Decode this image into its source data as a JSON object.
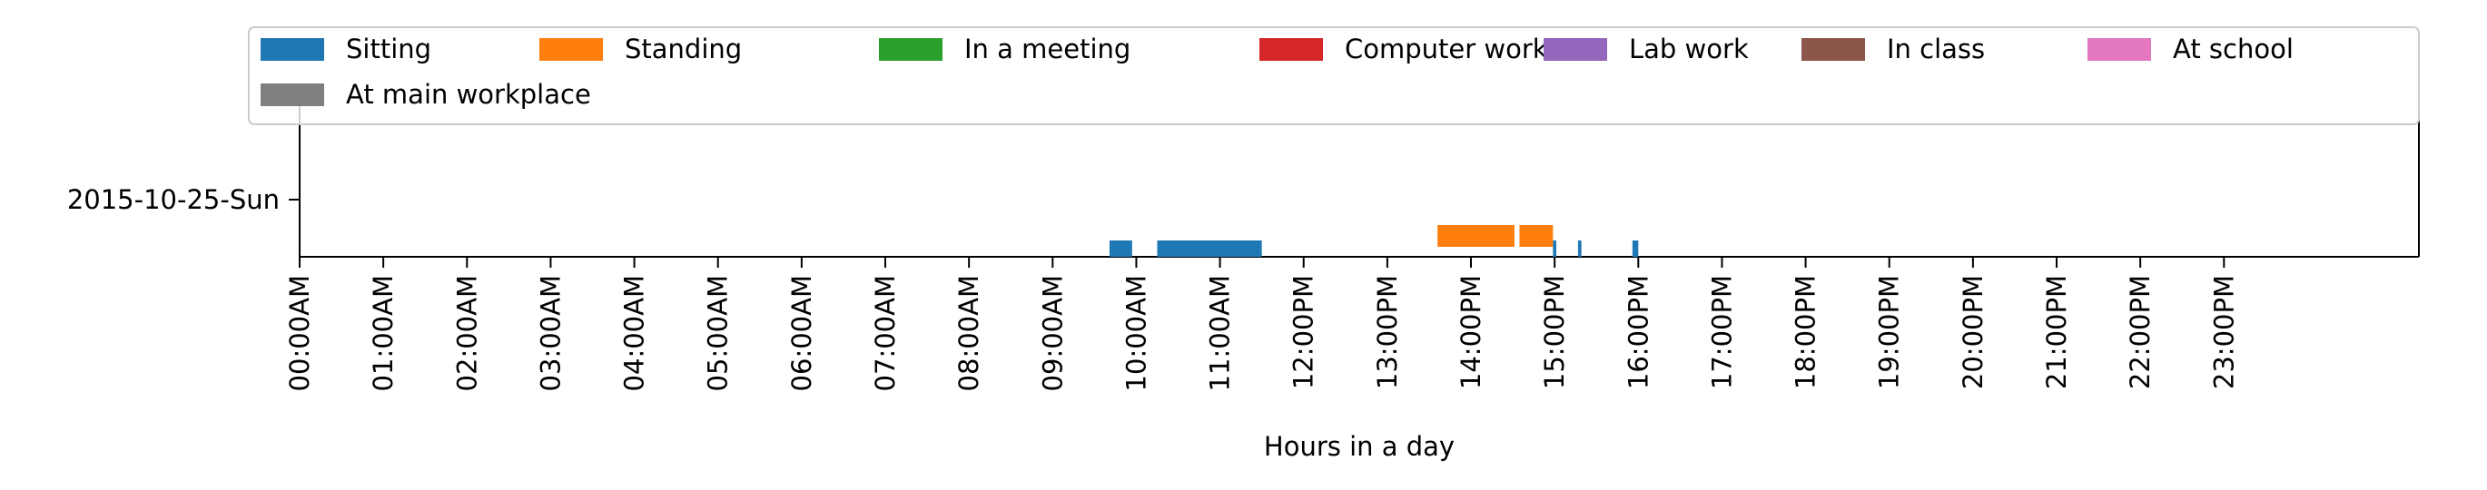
{
  "chart_data": {
    "type": "bar",
    "orientation": "horizontal-timeline",
    "title": "",
    "xlabel": "Hours in a day",
    "ylabel": "",
    "xlim": [
      0,
      24
    ],
    "grid": false,
    "legend_placement": "top",
    "categories": [
      "2015-10-25-Sun"
    ],
    "x_ticks": [
      "00:00AM",
      "01:00AM",
      "02:00AM",
      "03:00AM",
      "04:00AM",
      "05:00AM",
      "06:00AM",
      "07:00AM",
      "08:00AM",
      "09:00AM",
      "10:00AM",
      "11:00AM",
      "12:00PM",
      "13:00PM",
      "14:00PM",
      "15:00PM",
      "16:00PM",
      "17:00PM",
      "18:00PM",
      "19:00PM",
      "20:00PM",
      "21:00PM",
      "22:00PM",
      "23:00PM"
    ],
    "series": [
      {
        "name": "Sitting",
        "color": "#1f77b4",
        "intervals": [
          [
            9.68,
            9.95
          ],
          [
            10.25,
            11.5
          ],
          [
            14.98,
            15.02
          ],
          [
            15.28,
            15.32
          ],
          [
            15.93,
            16.0
          ]
        ]
      },
      {
        "name": "Standing",
        "color": "#ff7f0e",
        "intervals": [
          [
            13.6,
            14.52
          ],
          [
            14.58,
            14.98
          ]
        ]
      },
      {
        "name": "In a meeting",
        "color": "#2ca02c",
        "intervals": []
      },
      {
        "name": "Computer work",
        "color": "#d62728",
        "intervals": []
      },
      {
        "name": "Lab work",
        "color": "#9467bd",
        "intervals": []
      },
      {
        "name": "In class",
        "color": "#8c564b",
        "intervals": []
      },
      {
        "name": "At school",
        "color": "#e377c2",
        "intervals": []
      },
      {
        "name": "At main workplace",
        "color": "#7f7f7f",
        "intervals": []
      }
    ]
  }
}
